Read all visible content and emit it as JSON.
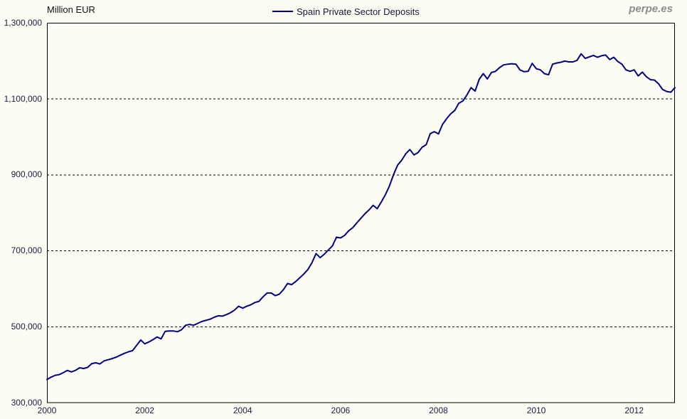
{
  "header": {
    "unit_label": "Million EUR",
    "watermark": "perpe.es"
  },
  "legend": {
    "label": "Spain Private Sector Deposits",
    "line_color": "#000080"
  },
  "chart_data": {
    "type": "line",
    "title": "",
    "ylabel": "Million EUR",
    "xlabel": "",
    "grid": "horizontal-dashed",
    "legend_position": "top-center",
    "ylim": [
      300000,
      1300000
    ],
    "xlim_years": [
      2000,
      2012.833
    ],
    "y_ticks": [
      1300000,
      1100000,
      900000,
      700000,
      500000,
      300000
    ],
    "y_tick_labels": [
      "1,300,000",
      "1,100,000",
      "900,000",
      "700,000",
      "500,000",
      "300,000"
    ],
    "y_gridline_ticks": [
      1100000,
      900000,
      700000,
      500000
    ],
    "x_ticks": [
      2000,
      2002,
      2004,
      2006,
      2008,
      2010,
      2012
    ],
    "x_tick_labels": [
      "2000",
      "2002",
      "2004",
      "2006",
      "2008",
      "2010",
      "2012"
    ],
    "series": [
      {
        "name": "Spain Private Sector Deposits",
        "color": "#000080",
        "unit": "Million EUR",
        "frequency": "monthly",
        "start_year": 2000,
        "start_month": 1,
        "end_year": 2012,
        "end_month": 11,
        "values": [
          360000,
          366000,
          371000,
          373000,
          378000,
          384000,
          380000,
          384000,
          391000,
          389000,
          392000,
          402000,
          404000,
          401000,
          409000,
          412000,
          415000,
          419000,
          424000,
          429000,
          433000,
          436000,
          450000,
          464000,
          454000,
          459000,
          465000,
          472000,
          467000,
          487000,
          488000,
          488000,
          486000,
          491000,
          503000,
          505000,
          503000,
          508000,
          513000,
          516000,
          519000,
          524000,
          528000,
          527000,
          531000,
          536000,
          543000,
          553000,
          548000,
          553000,
          557000,
          563000,
          566000,
          578000,
          588000,
          588000,
          581000,
          585000,
          597000,
          613000,
          610000,
          618000,
          628000,
          638000,
          650000,
          668000,
          692000,
          681000,
          690000,
          701000,
          712000,
          735000,
          733000,
          740000,
          752000,
          760000,
          773000,
          785000,
          797000,
          807000,
          819000,
          810000,
          828000,
          847000,
          870000,
          900000,
          925000,
          938000,
          955000,
          966000,
          952000,
          958000,
          972000,
          979000,
          1008000,
          1013000,
          1007000,
          1032000,
          1047000,
          1060000,
          1069000,
          1088000,
          1094000,
          1110000,
          1129000,
          1120000,
          1151000,
          1166000,
          1152000,
          1169000,
          1172000,
          1182000,
          1189000,
          1191000,
          1192000,
          1191000,
          1176000,
          1171000,
          1172000,
          1193000,
          1179000,
          1176000,
          1166000,
          1163000,
          1191000,
          1194000,
          1196000,
          1199000,
          1197000,
          1197000,
          1201000,
          1218000,
          1206000,
          1210000,
          1214000,
          1209000,
          1213000,
          1215000,
          1203000,
          1209000,
          1198000,
          1191000,
          1176000,
          1172000,
          1176000,
          1160000,
          1170000,
          1158000,
          1150000,
          1149000,
          1139000,
          1124000,
          1119000,
          1117000,
          1129000
        ]
      }
    ]
  }
}
